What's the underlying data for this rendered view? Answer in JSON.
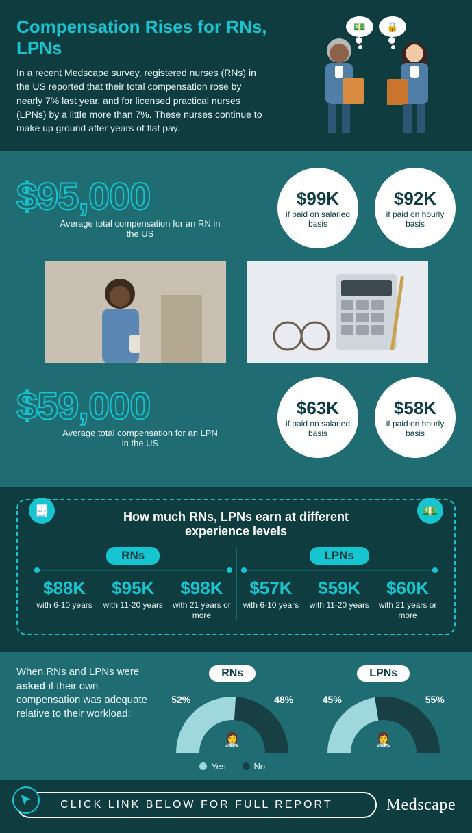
{
  "colors": {
    "bg_dark": "#0e3c3f",
    "bg_mid": "#206c73",
    "accent": "#16c5cf",
    "white": "#ffffff",
    "text_light": "#e6f6f7",
    "donut_yes": "#9ed7dc",
    "donut_no": "#173f44"
  },
  "header": {
    "title": "Compensation Rises for RNs, LPNs",
    "body": "In a recent Medscape survey, registered nurses (RNs) in the US reported that their total compensation rose by nearly 7% last year, and for licensed practical nurses (LPNs) by a little more than 7%. These nurses continue to make up ground after years of flat pay."
  },
  "stats": {
    "rn": {
      "amount": "$95,000",
      "caption": "Average total compensation for an RN in the US",
      "salaried": {
        "value": "$99K",
        "caption": "if paid on salaried basis"
      },
      "hourly": {
        "value": "$92K",
        "caption": "if paid on hourly basis"
      }
    },
    "lpn": {
      "amount": "$59,000",
      "caption": "Average total compensation for an LPN in the US",
      "salaried": {
        "value": "$63K",
        "caption": "if paid on salaried basis"
      },
      "hourly": {
        "value": "$58K",
        "caption": "if paid on hourly basis"
      }
    }
  },
  "experience": {
    "title": "How much RNs, LPNs earn at different experience levels",
    "rn_label": "RNs",
    "lpn_label": "LPNs",
    "rn": [
      {
        "value": "$88K",
        "caption": "with 6-10 years"
      },
      {
        "value": "$95K",
        "caption": "with 11-20 years"
      },
      {
        "value": "$98K",
        "caption": "with 21 years or more"
      }
    ],
    "lpn": [
      {
        "value": "$57K",
        "caption": "with 6-10 years"
      },
      {
        "value": "$59K",
        "caption": "with 11-20 years"
      },
      {
        "value": "$60K",
        "caption": "with 21 years or more"
      }
    ]
  },
  "adequacy": {
    "prompt_prefix": "When RNs and LPNs were ",
    "prompt_strong": "asked",
    "prompt_suffix": " if their own compensation was adequate relative to their workload:",
    "rn": {
      "label": "RNs",
      "yes_pct": 52,
      "no_pct": 48,
      "yes_text": "52%",
      "no_text": "48%"
    },
    "lpn": {
      "label": "LPNs",
      "yes_pct": 45,
      "no_pct": 55,
      "yes_text": "45%",
      "no_text": "55%"
    },
    "legend_yes": "Yes",
    "legend_no": "No"
  },
  "footer": {
    "cta": "CLICK LINK BELOW FOR FULL REPORT",
    "brand": "Medscape"
  }
}
